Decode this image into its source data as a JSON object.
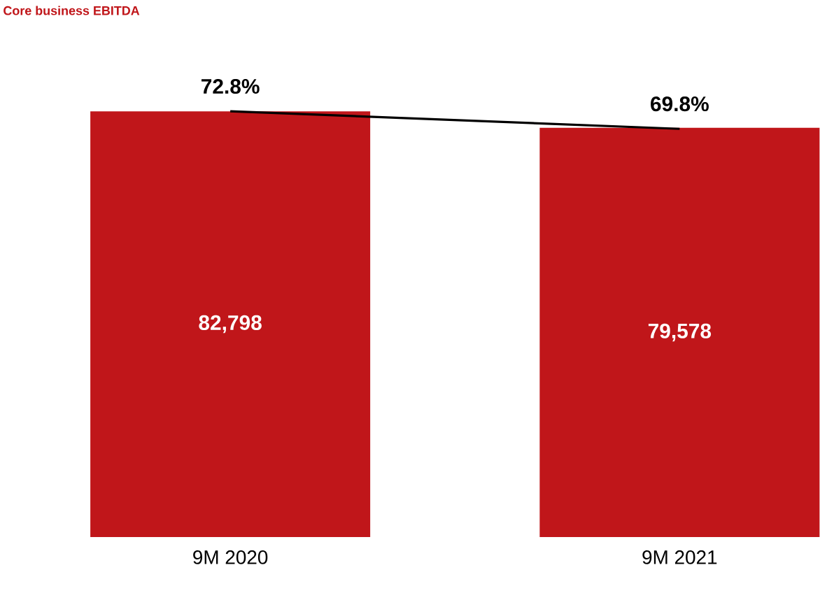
{
  "chart_data": {
    "type": "bar",
    "title": "Core business EBITDA",
    "categories": [
      "9M 2020",
      "9M 2021"
    ],
    "tick_labels": "x",
    "marker": "none",
    "series": [
      {
        "color": "#c0161a",
        "values": [
          82798,
          79578
        ],
        "value_labels": [
          "82,798",
          "79,578"
        ]
      },
      {
        "type": "line",
        "axis": "y2",
        "color": "#000000",
        "values": [
          72.8,
          69.8
        ],
        "value_labels": [
          "72.8%",
          "69.8%"
        ]
      }
    ]
  }
}
